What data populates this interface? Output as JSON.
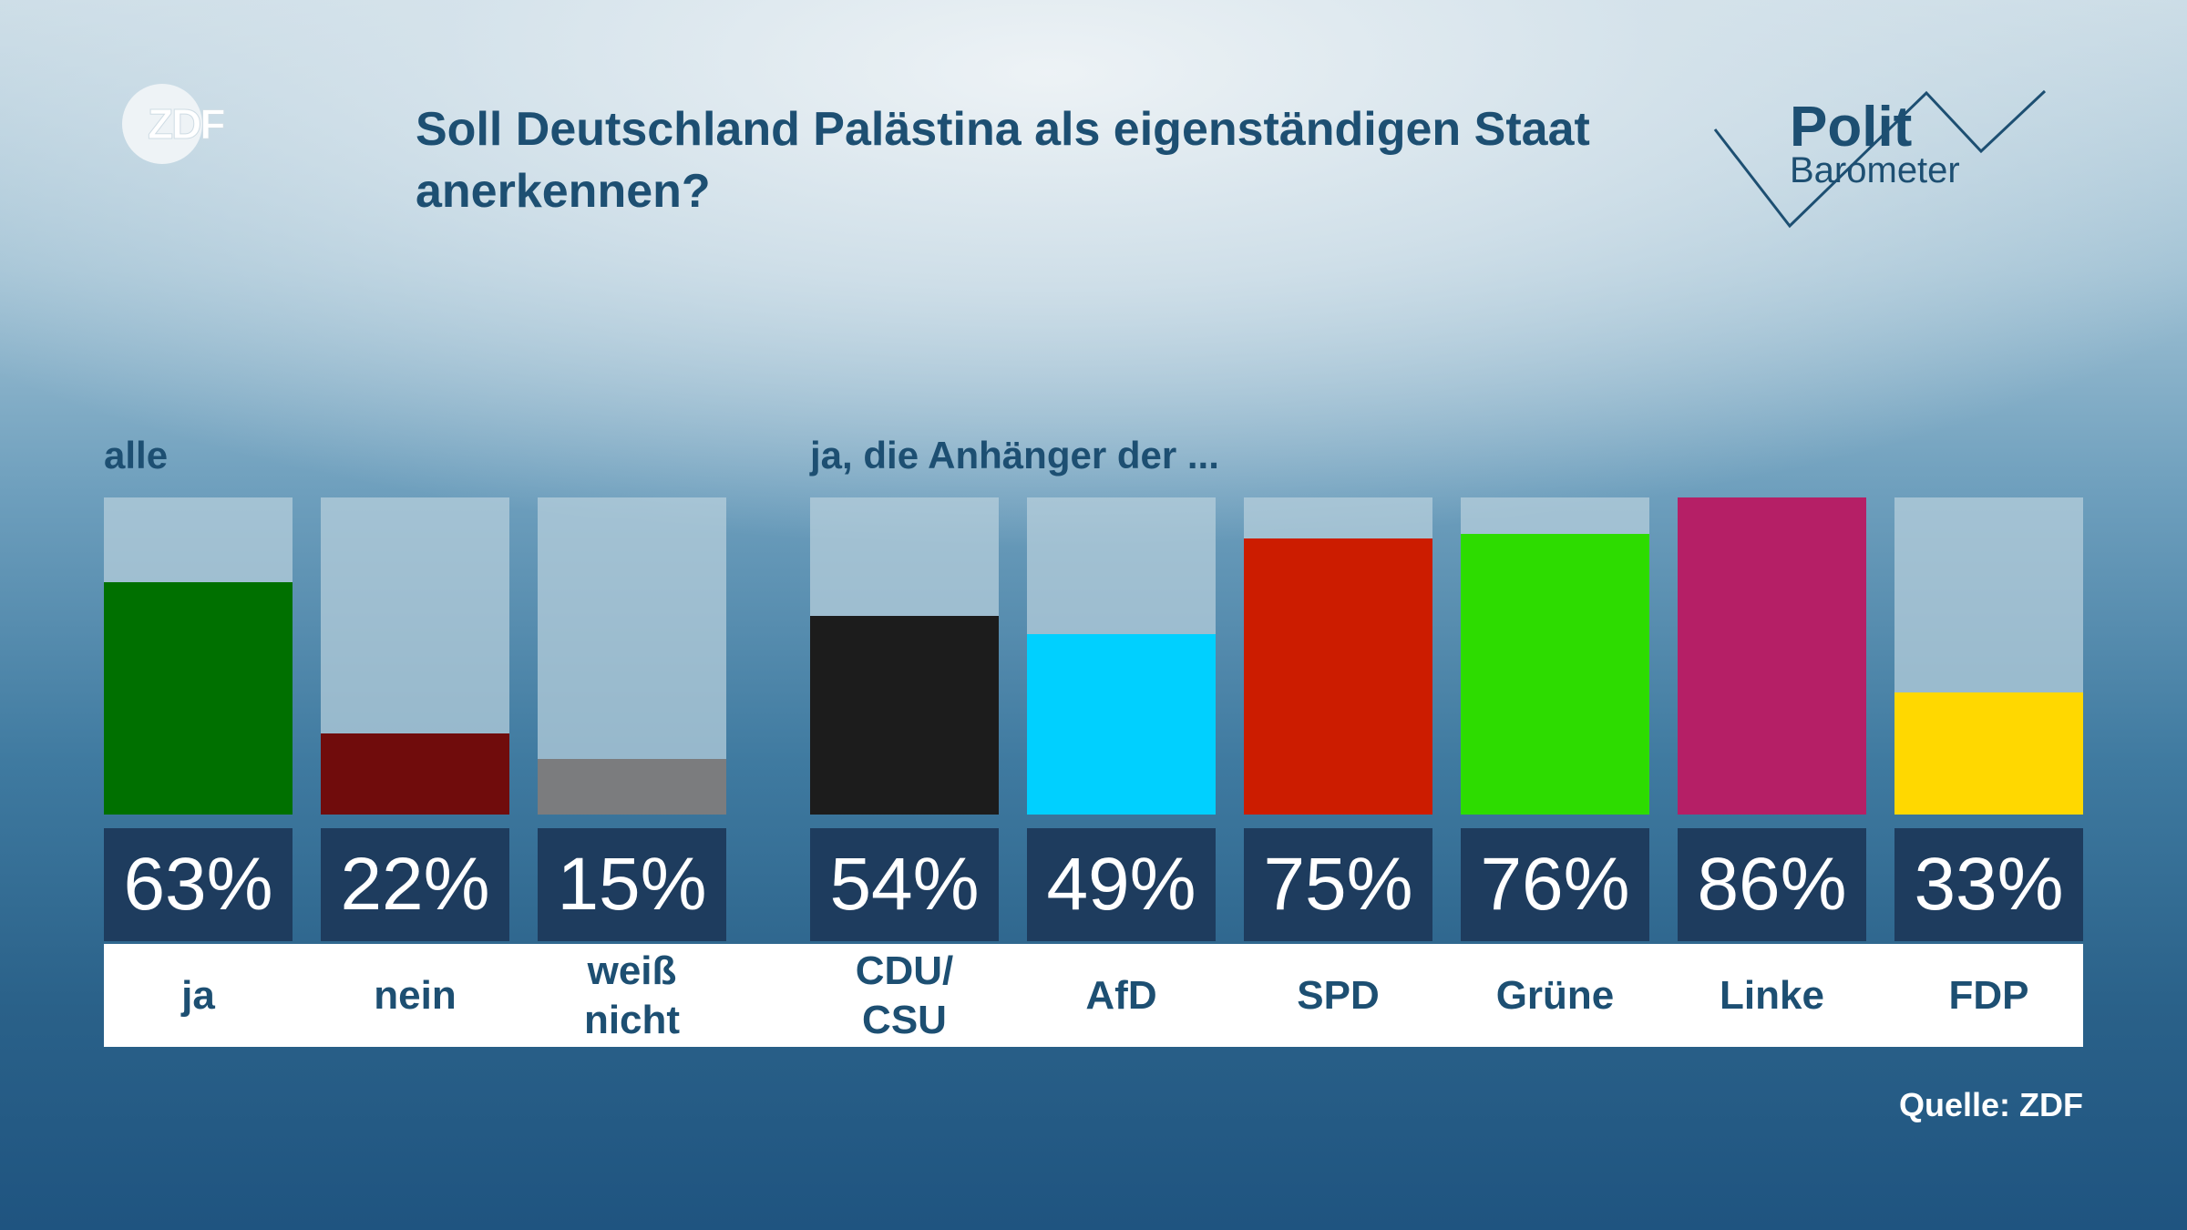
{
  "logos": {
    "zdf": "ZDF",
    "polit_line1": "Polit",
    "polit_line2": "Barometer"
  },
  "title": "Soll Deutschland Palästina als eigenständigen Staat anerkennen?",
  "source": "Quelle: ZDF",
  "chart_data": {
    "type": "bar",
    "title": "Soll Deutschland Palästina als eigenständigen Staat anerkennen?",
    "ylim": [
      0,
      86
    ],
    "groups": [
      {
        "label": "alle",
        "categories": [
          "ja",
          "nein",
          "weiß\nnicht"
        ],
        "values": [
          63,
          22,
          15
        ],
        "display": [
          "63%",
          "22%",
          "15%"
        ],
        "colors": [
          "#007000",
          "#700c0c",
          "#7b7c7e"
        ]
      },
      {
        "label": "ja, die Anhänger der ...",
        "categories": [
          "CDU/\nCSU",
          "AfD",
          "SPD",
          "Grüne",
          "Linke",
          "FDP"
        ],
        "values": [
          54,
          49,
          75,
          76,
          86,
          33
        ],
        "display": [
          "54%",
          "49%",
          "75%",
          "76%",
          "86%",
          "33%"
        ],
        "colors": [
          "#1c1c1c",
          "#00d0ff",
          "#cc1c00",
          "#2ddc00",
          "#b51f66",
          "#ffd800"
        ]
      }
    ]
  }
}
